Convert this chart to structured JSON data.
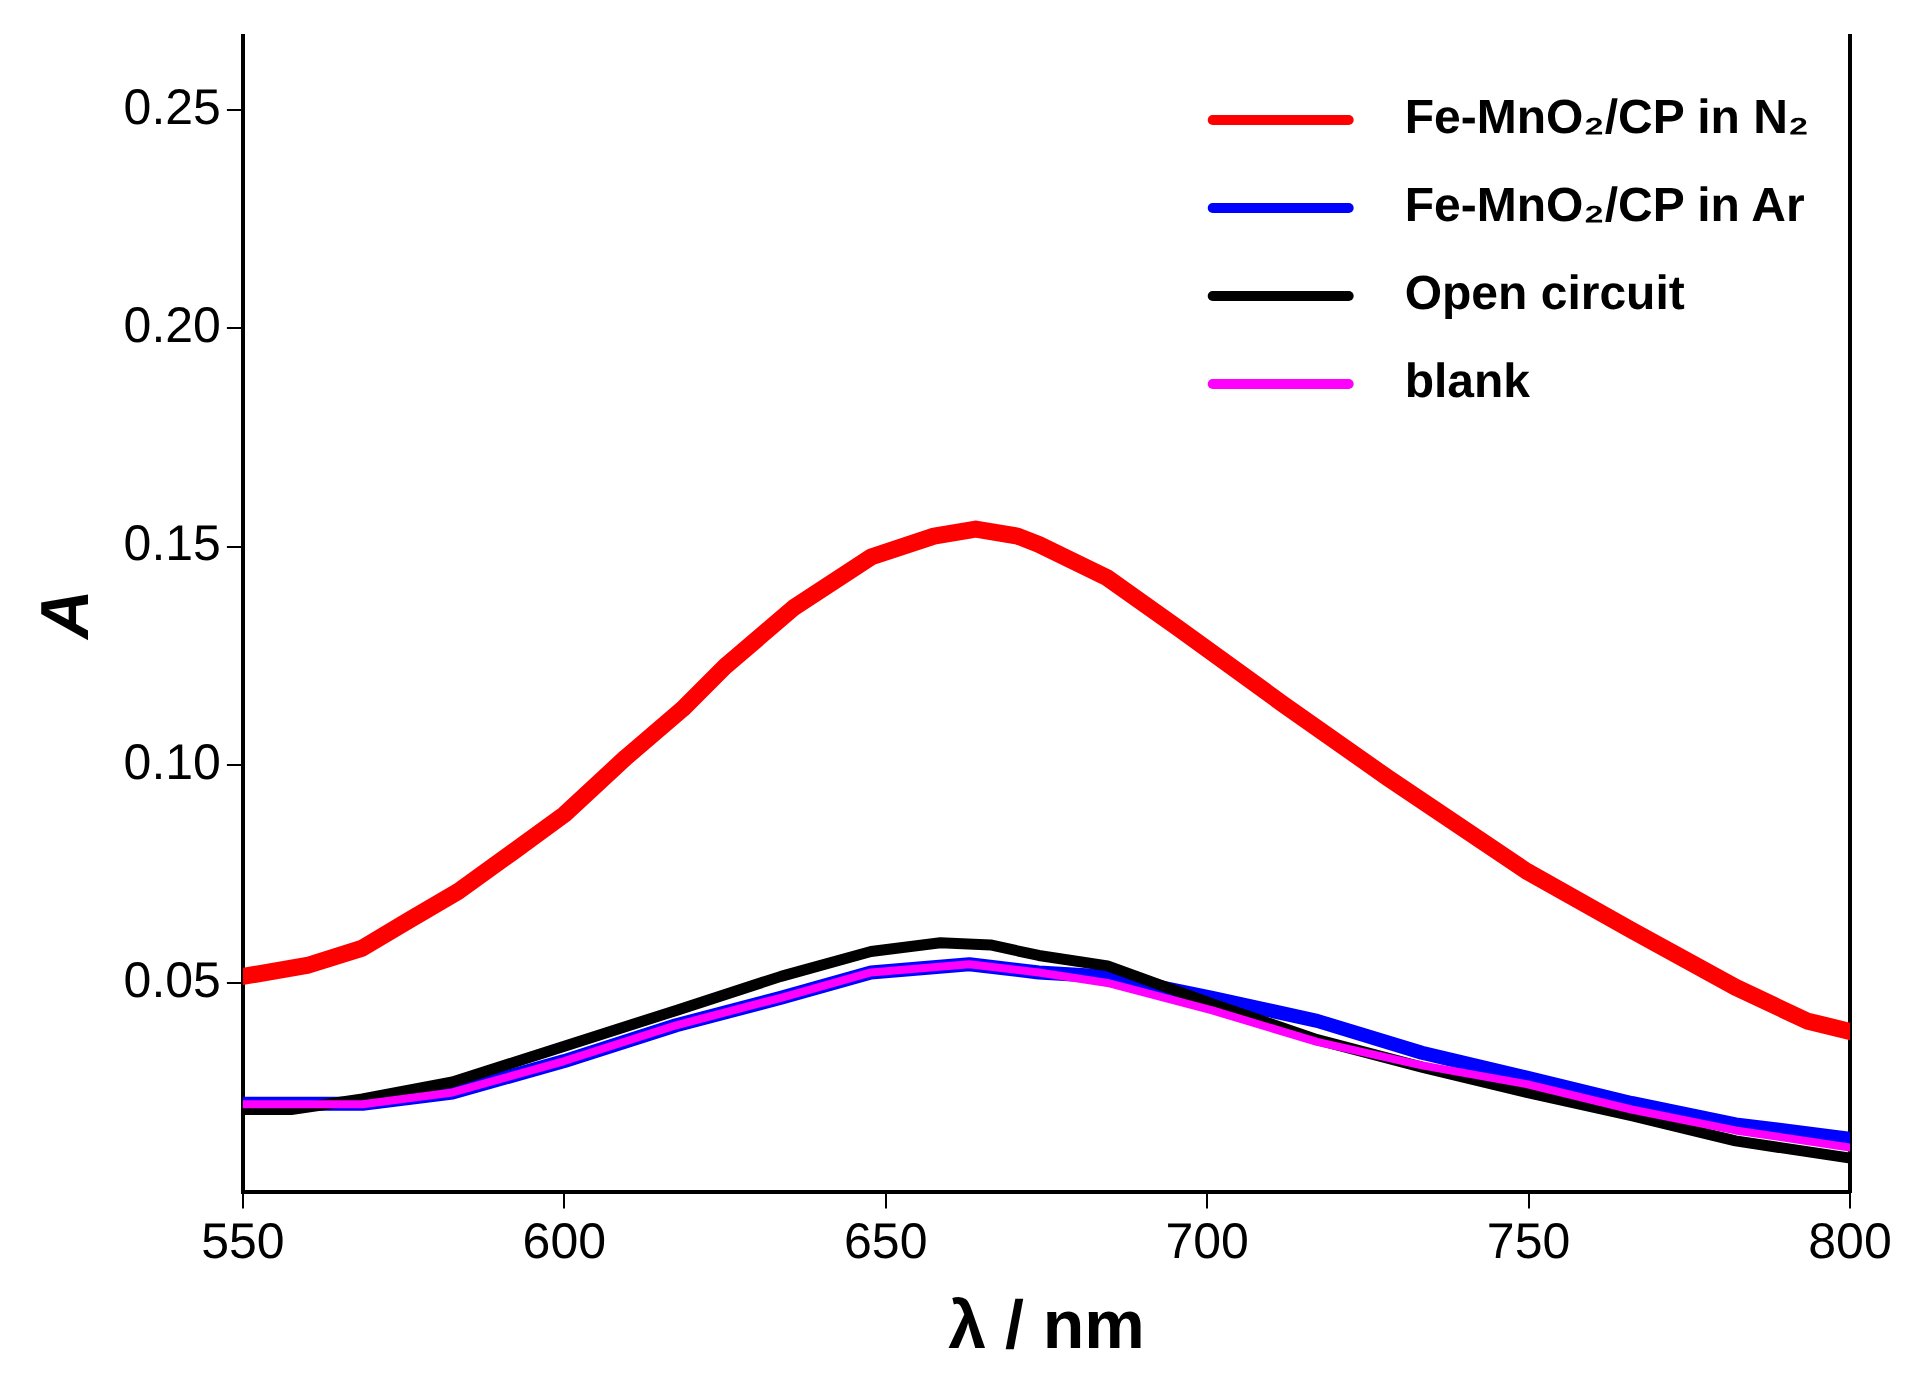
{
  "chart_data": {
    "type": "line",
    "xlabel": "λ / nm",
    "ylabel": "A",
    "xlim": [
      550,
      800
    ],
    "xticks": [
      550,
      600,
      650,
      700,
      750,
      800
    ],
    "ylim": [
      0.002,
      0.267
    ],
    "yticks": [
      0.05,
      {
        "value": 0.1,
        "label": "0.10"
      },
      0.15,
      {
        "value": 0.2,
        "label": "0.20"
      },
      0.25
    ],
    "grid": false,
    "legend": "top right",
    "marker": "none",
    "line_style": "solid",
    "series": [
      {
        "name": "Fe-MnO₂/CP in N₂",
        "color": "#ff0000",
        "x": [
          550,
          560,
          568.6,
          576,
          583.5,
          592,
          600,
          609.6,
          618.4,
          625,
          635.7,
          647.7,
          657.5,
          664,
          670.5,
          673.8,
          684.5,
          695.6,
          711.9,
          728.2,
          749.7,
          766,
          782.2,
          793.3,
          800
        ],
        "values": [
          0.0515,
          0.054,
          0.058,
          0.0645,
          0.071,
          0.08,
          0.0886,
          0.1017,
          0.1128,
          0.1225,
          0.136,
          0.1476,
          0.1524,
          0.154,
          0.1524,
          0.1505,
          0.1428,
          0.1312,
          0.1138,
          0.0969,
          0.0756,
          0.0621,
          0.049,
          0.0413,
          0.0389
        ]
      },
      {
        "name": "Fe-MnO₂/CP in Ar",
        "color": "#0000ff",
        "x": [
          550,
          568.6,
          582.6,
          600,
          617.4,
          633.7,
          647.7,
          663,
          673.8,
          684.5,
          700.8,
          717.1,
          733.4,
          749.7,
          766,
          782.2,
          800
        ],
        "values": [
          0.0223,
          0.0223,
          0.0249,
          0.0321,
          0.0403,
          0.0466,
          0.0524,
          0.0543,
          0.0524,
          0.0515,
          0.0466,
          0.0413,
          0.034,
          0.0283,
          0.0225,
          0.0176,
          0.0143
        ]
      },
      {
        "name": "Open circuit",
        "color": "#000000",
        "x": [
          550,
          557.5,
          568.6,
          582.6,
          600,
          617.4,
          633.7,
          647.7,
          658.5,
          666.3,
          673.8,
          684.5,
          700.8,
          717.1,
          733.4,
          749.7,
          766,
          782.2,
          799.8
        ],
        "values": [
          0.021,
          0.021,
          0.0234,
          0.0273,
          0.0355,
          0.0437,
          0.0515,
          0.0572,
          0.0592,
          0.0587,
          0.0563,
          0.0539,
          0.0452,
          0.037,
          0.0307,
          0.0249,
          0.0196,
          0.0138,
          0.0099
        ]
      },
      {
        "name": "blank",
        "color": "#ff00ff",
        "x": [
          550,
          568.6,
          582.6,
          600,
          617.4,
          633.7,
          647.7,
          663,
          673.8,
          684.5,
          700.8,
          717.1,
          733.4,
          749.7,
          766,
          782.2,
          800
        ],
        "values": [
          0.0222,
          0.0222,
          0.0249,
          0.0321,
          0.0403,
          0.0466,
          0.0524,
          0.0543,
          0.0524,
          0.05,
          0.0437,
          0.0365,
          0.0311,
          0.0268,
          0.021,
          0.0162,
          0.0123
        ]
      }
    ]
  }
}
